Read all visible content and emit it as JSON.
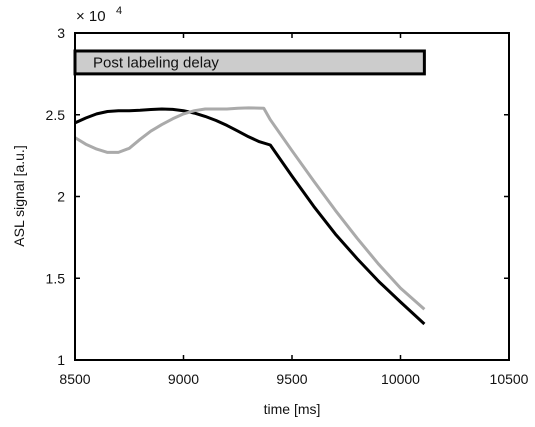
{
  "chart_data": {
    "type": "line",
    "xlabel": "time [ms]",
    "ylabel": "ASL signal [a.u.]",
    "xlim": [
      8500,
      10500
    ],
    "ylim": [
      10000,
      30000
    ],
    "x_ticks": [
      "8500",
      "9000",
      "9500",
      "10000",
      "10500"
    ],
    "y_ticks": [
      "1",
      "1.5",
      "2",
      "2.5",
      "3"
    ],
    "y_exponent": {
      "base": "× 10",
      "power": "4"
    },
    "grid": false,
    "annotation": {
      "text": "Post labeling delay",
      "x_start": 8500,
      "x_end": 10110,
      "y_low": 27500,
      "y_high": 28900,
      "fill": "#cccccc"
    },
    "series": [
      {
        "color": "#000000",
        "points": [
          [
            8500,
            24500
          ],
          [
            8550,
            24800
          ],
          [
            8600,
            25050
          ],
          [
            8650,
            25200
          ],
          [
            8700,
            25250
          ],
          [
            8750,
            25250
          ],
          [
            8800,
            25270
          ],
          [
            8850,
            25320
          ],
          [
            8900,
            25350
          ],
          [
            8950,
            25330
          ],
          [
            9000,
            25250
          ],
          [
            9050,
            25100
          ],
          [
            9100,
            24900
          ],
          [
            9150,
            24650
          ],
          [
            9200,
            24350
          ],
          [
            9250,
            24000
          ],
          [
            9300,
            23650
          ],
          [
            9350,
            23350
          ],
          [
            9400,
            23150
          ],
          [
            9500,
            21250
          ],
          [
            9600,
            19400
          ],
          [
            9700,
            17700
          ],
          [
            9800,
            16200
          ],
          [
            9900,
            14800
          ],
          [
            10000,
            13550
          ],
          [
            10110,
            12200
          ]
        ]
      },
      {
        "color": "#aaaaaa",
        "points": [
          [
            8500,
            23600
          ],
          [
            8550,
            23200
          ],
          [
            8600,
            22900
          ],
          [
            8650,
            22700
          ],
          [
            8700,
            22700
          ],
          [
            8750,
            22950
          ],
          [
            8800,
            23500
          ],
          [
            8850,
            24000
          ],
          [
            8900,
            24400
          ],
          [
            8950,
            24750
          ],
          [
            9000,
            25050
          ],
          [
            9050,
            25250
          ],
          [
            9100,
            25350
          ],
          [
            9150,
            25350
          ],
          [
            9200,
            25350
          ],
          [
            9250,
            25400
          ],
          [
            9300,
            25420
          ],
          [
            9370,
            25400
          ],
          [
            9400,
            24700
          ],
          [
            9500,
            22800
          ],
          [
            9600,
            20950
          ],
          [
            9700,
            19150
          ],
          [
            9800,
            17450
          ],
          [
            9900,
            15850
          ],
          [
            10000,
            14400
          ],
          [
            10110,
            13100
          ]
        ]
      }
    ]
  }
}
